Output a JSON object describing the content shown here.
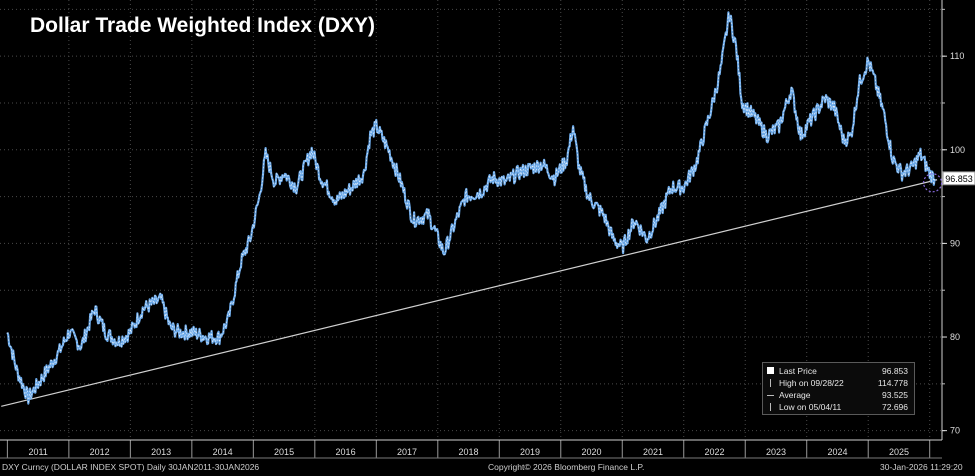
{
  "chart_data": {
    "type": "line",
    "title": "Dollar Trade Weighted Index (DXY)",
    "ylim": [
      69,
      116
    ],
    "yticks": [
      70,
      80,
      90,
      100,
      110
    ],
    "x_tick_labels": [
      "2011",
      "2012",
      "2013",
      "2014",
      "2015",
      "2016",
      "2017",
      "2018",
      "2019",
      "2020",
      "2021",
      "2022",
      "2023",
      "2024",
      "2025"
    ],
    "series": [
      {
        "x": [
          2011.0,
          2011.15,
          2011.34,
          2011.5,
          2011.65,
          2011.85,
          2012.0,
          2012.2,
          2012.42,
          2012.6,
          2012.8,
          2013.0,
          2013.2,
          2013.5,
          2013.65,
          2013.8,
          2014.0,
          2014.25,
          2014.45,
          2014.6,
          2014.8,
          2014.95,
          2015.1,
          2015.2,
          2015.35,
          2015.5,
          2015.7,
          2015.95,
          2016.1,
          2016.35,
          2016.6,
          2016.8,
          2016.9,
          2017.0,
          2017.2,
          2017.4,
          2017.6,
          2017.85,
          2018.1,
          2018.3,
          2018.45,
          2018.7,
          2018.9,
          2019.1,
          2019.3,
          2019.5,
          2019.7,
          2019.9,
          2020.1,
          2020.2,
          2020.3,
          2020.45,
          2020.7,
          2020.85,
          2021.0,
          2021.2,
          2021.4,
          2021.6,
          2021.8,
          2022.0,
          2022.2,
          2022.45,
          2022.6,
          2022.74,
          2022.85,
          2022.95,
          2023.15,
          2023.35,
          2023.55,
          2023.75,
          2023.9,
          2024.1,
          2024.3,
          2024.45,
          2024.6,
          2024.72,
          2024.85,
          2025.0,
          2025.1,
          2025.25,
          2025.4,
          2025.55,
          2025.7,
          2025.85,
          2026.0,
          2026.08
        ],
        "values": [
          80.5,
          76.5,
          73.5,
          75.0,
          76.5,
          78.5,
          80.5,
          79.0,
          83.0,
          80.5,
          79.5,
          80.5,
          83.0,
          84.0,
          81.0,
          80.5,
          80.5,
          80.0,
          80.0,
          82.0,
          88.0,
          90.5,
          95.0,
          99.5,
          96.5,
          97.5,
          96.0,
          100.0,
          97.0,
          94.5,
          96.0,
          97.5,
          101.5,
          102.5,
          100.0,
          96.5,
          92.5,
          93.0,
          89.0,
          92.5,
          95.0,
          95.5,
          97.0,
          96.5,
          97.5,
          98.0,
          98.5,
          97.0,
          99.0,
          102.5,
          98.0,
          95.0,
          93.0,
          90.5,
          89.5,
          92.5,
          90.5,
          93.0,
          96.0,
          96.0,
          98.5,
          104.5,
          108.5,
          114.5,
          111.0,
          105.0,
          103.5,
          101.5,
          102.5,
          106.5,
          101.5,
          103.5,
          105.5,
          104.5,
          101.0,
          101.5,
          107.0,
          109.5,
          107.5,
          104.0,
          99.0,
          97.5,
          98.0,
          99.5,
          97.5,
          96.9
        ]
      }
    ],
    "trendline": {
      "start": [
        2010.9,
        72.6
      ],
      "end": [
        2026.12,
        96.8
      ]
    },
    "last_price_label": "96.853",
    "legend": {
      "rows": [
        {
          "label": "Last Price",
          "value": "96.853"
        },
        {
          "label": "High on 09/28/22",
          "value": "114.778"
        },
        {
          "label": "Average",
          "value": "93.525"
        },
        {
          "label": "Low on 05/04/11",
          "value": "72.696"
        }
      ]
    }
  },
  "footer": {
    "left": "DXY Curncy (DOLLAR INDEX SPOT) Daily 30JAN2011-30JAN2026",
    "center": "Copyright© 2026 Bloomberg Finance L.P.",
    "right": "30-Jan-2026 11:29:20"
  },
  "colors": {
    "line": "#6aa8e8",
    "highlight": "#ffffff",
    "trend": "#d0d0d0",
    "circle": "#8a6be0",
    "grid": "#4a4a4a"
  }
}
